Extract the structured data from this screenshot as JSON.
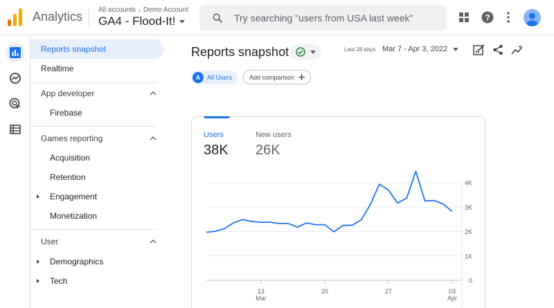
{
  "header": {
    "app_name": "Analytics",
    "breadcrumb": [
      "All accounts",
      "Demo Account"
    ],
    "property": "GA4 - Flood-It!",
    "search_placeholder": "Try searching \"users from USA last week\"",
    "icons": [
      "apps-grid-icon",
      "help-icon",
      "more-vert-icon",
      "account-avatar"
    ]
  },
  "rail": {
    "items": [
      "reports-icon",
      "explore-icon",
      "advertising-icon",
      "configure-icon"
    ],
    "active_index": 0
  },
  "nav": {
    "items": [
      {
        "label": "Reports snapshot",
        "active": true
      },
      {
        "label": "Realtime"
      }
    ],
    "sections": [
      {
        "title": "App developer",
        "expanded": true,
        "items": [
          {
            "label": "Firebase",
            "expandable": false
          }
        ]
      },
      {
        "title": "Games reporting",
        "expanded": true,
        "items": [
          {
            "label": "Acquisition",
            "expandable": false
          },
          {
            "label": "Retention",
            "expandable": false
          },
          {
            "label": "Engagement",
            "expandable": true
          },
          {
            "label": "Monetization",
            "expandable": false
          }
        ]
      },
      {
        "title": "User",
        "expanded": true,
        "items": [
          {
            "label": "Demographics",
            "expandable": true
          },
          {
            "label": "Tech",
            "expandable": true
          }
        ]
      }
    ]
  },
  "main": {
    "title": "Reports snapshot",
    "date_label": "Last 28 days",
    "date_range": "Mar 7 - Apr 3, 2022",
    "comparison": {
      "badge": "A",
      "label": "All Users",
      "add_label": "Add comparison"
    },
    "metrics": [
      {
        "label": "Users",
        "value": "38K",
        "active": true
      },
      {
        "label": "New users",
        "value": "26K"
      }
    ]
  },
  "colors": {
    "accent": "#1a73e8",
    "success": "#188038",
    "logo_orange": "#f9ab00",
    "logo_dark_orange": "#e37400"
  },
  "chart_data": {
    "type": "line",
    "series": [
      {
        "name": "Users",
        "values": [
          1970,
          2010,
          2120,
          2360,
          2490,
          2410,
          2380,
          2380,
          2330,
          2330,
          2180,
          2350,
          2280,
          2280,
          1990,
          2250,
          2260,
          2470,
          3100,
          3940,
          3700,
          3170,
          3370,
          4470,
          3250,
          3270,
          3130,
          2820
        ]
      }
    ],
    "x_tick_labels": [
      {
        "index": 6,
        "day": "13",
        "month": "Mar"
      },
      {
        "index": 13,
        "day": "20",
        "month": ""
      },
      {
        "index": 20,
        "day": "27",
        "month": ""
      },
      {
        "index": 27,
        "day": "03",
        "month": "Apr"
      }
    ],
    "y_ticks": [
      {
        "value": 0,
        "label": "0"
      },
      {
        "value": 1000,
        "label": "1K"
      },
      {
        "value": 2000,
        "label": "2K"
      },
      {
        "value": 3000,
        "label": "3K"
      },
      {
        "value": 4000,
        "label": "4K"
      }
    ],
    "ylim": [
      0,
      4000
    ],
    "grid": true
  }
}
